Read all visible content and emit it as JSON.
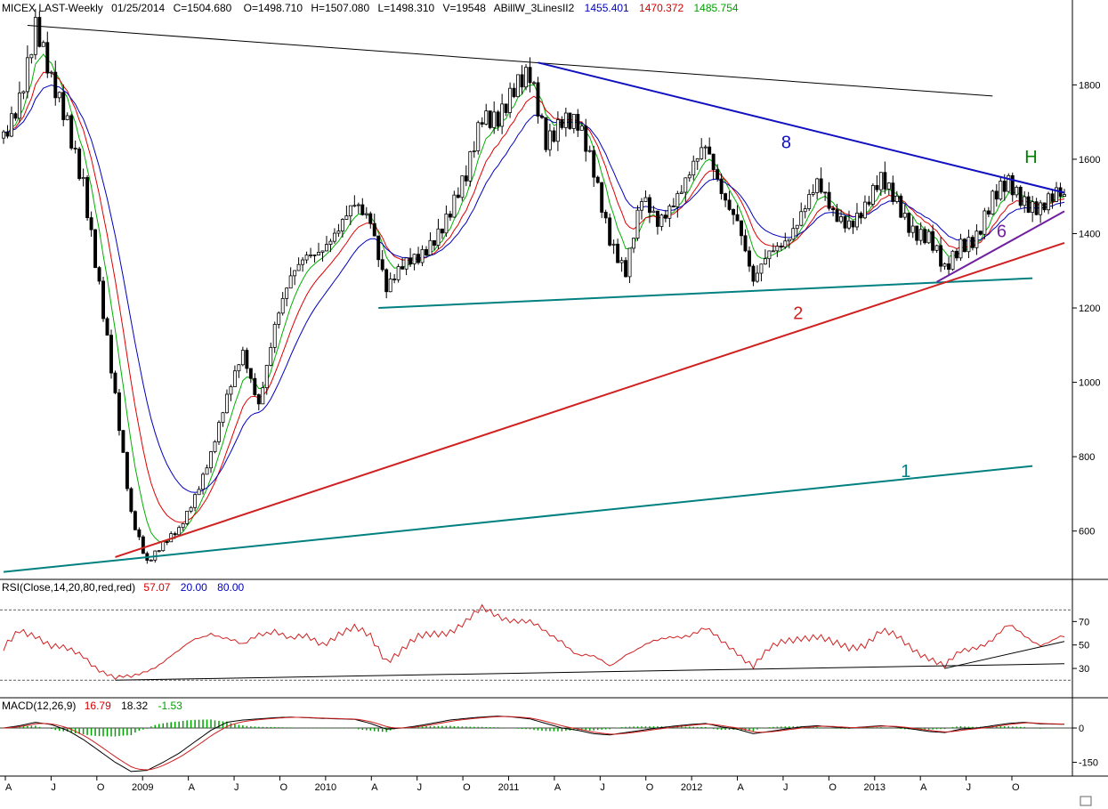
{
  "header": {
    "symbol": "MICEX LAST-Weekly",
    "date": "01/25/2014",
    "close": "C=1504.680",
    "open": "O=1498.710",
    "high": "H=1507.080",
    "low": "L=1498.310",
    "volume": "V=19548",
    "indicator": "ABillW_3LinesII2",
    "line1": "1455.401",
    "line2": "1470.372",
    "line3": "1485.754"
  },
  "rsi_header": {
    "label": "RSI(Close,14,20,80,red,red)",
    "value": "57.07",
    "low": "20.00",
    "high": "80.00"
  },
  "macd_header": {
    "label": "MACD(12,26,9)",
    "macd": "16.79",
    "signal": "18.32",
    "hist": "-1.53"
  },
  "colors": {
    "candle": "#000000",
    "fast_ma": "#00b000",
    "mid_ma": "#e00000",
    "slow_ma": "#0000c0",
    "line_teal": "#008080",
    "line_red": "#d02020",
    "line_blue": "#1010c0",
    "line_purple": "#7020a0",
    "label_H": "#008000"
  },
  "chart_data": {
    "type": "candlestick",
    "timeframe": "weekly",
    "ylim": [
      470,
      1990
    ],
    "y_ticks": [
      600,
      800,
      1000,
      1200,
      1400,
      1600,
      1800
    ],
    "x_labels": [
      "A",
      "J",
      "O",
      "2009",
      "A",
      "J",
      "O",
      "2010",
      "A",
      "J",
      "O",
      "2011",
      "A",
      "J",
      "O",
      "2012",
      "A",
      "J",
      "O",
      "2013",
      "A",
      "J",
      "O"
    ],
    "anchors": [
      [
        0,
        1650
      ],
      [
        4,
        1780
      ],
      [
        8,
        1960
      ],
      [
        12,
        1790
      ],
      [
        16,
        1700
      ],
      [
        20,
        1550
      ],
      [
        24,
        1250
      ],
      [
        28,
        950
      ],
      [
        32,
        650
      ],
      [
        36,
        520
      ],
      [
        40,
        560
      ],
      [
        44,
        600
      ],
      [
        48,
        700
      ],
      [
        52,
        810
      ],
      [
        56,
        950
      ],
      [
        60,
        1080
      ],
      [
        64,
        950
      ],
      [
        68,
        1150
      ],
      [
        72,
        1270
      ],
      [
        76,
        1350
      ],
      [
        80,
        1370
      ],
      [
        84,
        1400
      ],
      [
        88,
        1470
      ],
      [
        92,
        1450
      ],
      [
        96,
        1260
      ],
      [
        100,
        1300
      ],
      [
        104,
        1330
      ],
      [
        108,
        1400
      ],
      [
        112,
        1460
      ],
      [
        116,
        1540
      ],
      [
        120,
        1720
      ],
      [
        124,
        1730
      ],
      [
        128,
        1780
      ],
      [
        132,
        1810
      ],
      [
        136,
        1660
      ],
      [
        140,
        1720
      ],
      [
        144,
        1680
      ],
      [
        148,
        1560
      ],
      [
        152,
        1400
      ],
      [
        156,
        1300
      ],
      [
        160,
        1480
      ],
      [
        164,
        1430
      ],
      [
        168,
        1500
      ],
      [
        172,
        1560
      ],
      [
        176,
        1620
      ],
      [
        180,
        1520
      ],
      [
        184,
        1450
      ],
      [
        188,
        1260
      ],
      [
        192,
        1340
      ],
      [
        196,
        1390
      ],
      [
        200,
        1460
      ],
      [
        204,
        1520
      ],
      [
        208,
        1450
      ],
      [
        212,
        1440
      ],
      [
        216,
        1470
      ],
      [
        220,
        1530
      ],
      [
        224,
        1490
      ],
      [
        228,
        1420
      ],
      [
        232,
        1380
      ],
      [
        236,
        1290
      ],
      [
        240,
        1380
      ],
      [
        244,
        1400
      ],
      [
        248,
        1480
      ],
      [
        252,
        1530
      ],
      [
        256,
        1500
      ],
      [
        260,
        1470
      ],
      [
        264,
        1490
      ],
      [
        266,
        1505
      ]
    ],
    "trendlines": [
      {
        "label": "",
        "color": "#000000",
        "p1": [
          6,
          1960
        ],
        "p2": [
          248,
          1770
        ]
      },
      {
        "label": "8",
        "color": "#1010c0",
        "p1": [
          134,
          1860
        ],
        "p2": [
          266,
          1510
        ]
      },
      {
        "label": "",
        "color": "#008080",
        "p1": [
          94,
          1200
        ],
        "p2": [
          258,
          1280
        ]
      },
      {
        "label": "2",
        "color": "#d02020",
        "p1": [
          28,
          530
        ],
        "p2": [
          266,
          1375
        ]
      },
      {
        "label": "1",
        "color": "#008080",
        "p1": [
          0,
          490
        ],
        "p2": [
          258,
          775
        ]
      },
      {
        "label": "6",
        "color": "#7020a0",
        "p1": [
          234,
          1270
        ],
        "p2": [
          266,
          1460
        ]
      }
    ],
    "annotations": [
      {
        "text": "8",
        "x": 195,
        "y": 1630,
        "color": "#1010c0"
      },
      {
        "text": "2",
        "x": 198,
        "y": 1170,
        "color": "#d02020"
      },
      {
        "text": "1",
        "x": 225,
        "y": 745,
        "color": "#008080"
      },
      {
        "text": "6",
        "x": 249,
        "y": 1390,
        "color": "#7020a0"
      },
      {
        "text": "H",
        "x": 256,
        "y": 1590,
        "color": "#008000"
      }
    ],
    "rsi": {
      "ylim": [
        5,
        90
      ],
      "ticks": [
        30,
        50,
        70
      ],
      "levels": [
        20,
        80
      ],
      "anchors": [
        [
          0,
          45
        ],
        [
          4,
          63
        ],
        [
          8,
          60
        ],
        [
          12,
          48
        ],
        [
          16,
          45
        ],
        [
          20,
          42
        ],
        [
          24,
          30
        ],
        [
          28,
          20
        ],
        [
          32,
          22
        ],
        [
          36,
          30
        ],
        [
          40,
          36
        ],
        [
          44,
          43
        ],
        [
          48,
          55
        ],
        [
          52,
          62
        ],
        [
          56,
          55
        ],
        [
          60,
          48
        ],
        [
          64,
          60
        ],
        [
          68,
          64
        ],
        [
          72,
          54
        ],
        [
          76,
          56
        ],
        [
          80,
          52
        ],
        [
          84,
          60
        ],
        [
          88,
          63
        ],
        [
          92,
          57
        ],
        [
          96,
          38
        ],
        [
          100,
          46
        ],
        [
          104,
          55
        ],
        [
          108,
          60
        ],
        [
          112,
          63
        ],
        [
          116,
          69
        ],
        [
          120,
          80
        ],
        [
          124,
          76
        ],
        [
          128,
          72
        ],
        [
          132,
          68
        ],
        [
          136,
          60
        ],
        [
          140,
          55
        ],
        [
          144,
          42
        ],
        [
          148,
          38
        ],
        [
          152,
          32
        ],
        [
          156,
          44
        ],
        [
          160,
          48
        ],
        [
          164,
          52
        ],
        [
          168,
          58
        ],
        [
          172,
          60
        ],
        [
          176,
          63
        ],
        [
          180,
          52
        ],
        [
          184,
          45
        ],
        [
          188,
          33
        ],
        [
          192,
          45
        ],
        [
          196,
          53
        ],
        [
          200,
          58
        ],
        [
          204,
          57
        ],
        [
          208,
          50
        ],
        [
          212,
          48
        ],
        [
          216,
          52
        ],
        [
          220,
          61
        ],
        [
          224,
          56
        ],
        [
          228,
          48
        ],
        [
          232,
          40
        ],
        [
          236,
          30
        ],
        [
          240,
          44
        ],
        [
          244,
          50
        ],
        [
          248,
          55
        ],
        [
          252,
          65
        ],
        [
          256,
          58
        ],
        [
          260,
          52
        ],
        [
          264,
          55
        ],
        [
          266,
          57
        ]
      ],
      "trendlines": [
        {
          "p1": [
            28,
            20
          ],
          "p2": [
            266,
            34
          ]
        },
        {
          "p1": [
            236,
            30
          ],
          "p2": [
            266,
            53
          ]
        }
      ]
    },
    "macd": {
      "ylim": [
        -210,
        70
      ],
      "ticks": [
        -150,
        0
      ],
      "anchors": [
        [
          0,
          0
        ],
        [
          4,
          10
        ],
        [
          8,
          25
        ],
        [
          12,
          15
        ],
        [
          16,
          -10
        ],
        [
          20,
          -50
        ],
        [
          24,
          -100
        ],
        [
          28,
          -150
        ],
        [
          32,
          -190
        ],
        [
          36,
          -185
        ],
        [
          40,
          -150
        ],
        [
          44,
          -110
        ],
        [
          48,
          -60
        ],
        [
          52,
          -10
        ],
        [
          56,
          25
        ],
        [
          60,
          35
        ],
        [
          64,
          40
        ],
        [
          68,
          45
        ],
        [
          72,
          48
        ],
        [
          76,
          45
        ],
        [
          80,
          42
        ],
        [
          84,
          40
        ],
        [
          88,
          38
        ],
        [
          92,
          20
        ],
        [
          96,
          -5
        ],
        [
          100,
          0
        ],
        [
          104,
          10
        ],
        [
          108,
          22
        ],
        [
          112,
          35
        ],
        [
          116,
          42
        ],
        [
          120,
          48
        ],
        [
          124,
          52
        ],
        [
          128,
          48
        ],
        [
          132,
          40
        ],
        [
          136,
          20
        ],
        [
          140,
          0
        ],
        [
          144,
          -10
        ],
        [
          148,
          -25
        ],
        [
          152,
          -30
        ],
        [
          156,
          -20
        ],
        [
          160,
          -10
        ],
        [
          164,
          0
        ],
        [
          168,
          8
        ],
        [
          172,
          15
        ],
        [
          176,
          20
        ],
        [
          180,
          5
        ],
        [
          184,
          -5
        ],
        [
          188,
          -25
        ],
        [
          192,
          -15
        ],
        [
          196,
          -5
        ],
        [
          200,
          5
        ],
        [
          204,
          10
        ],
        [
          208,
          5
        ],
        [
          212,
          0
        ],
        [
          216,
          5
        ],
        [
          220,
          10
        ],
        [
          224,
          5
        ],
        [
          228,
          -5
        ],
        [
          232,
          -15
        ],
        [
          236,
          -20
        ],
        [
          240,
          -5
        ],
        [
          244,
          0
        ],
        [
          248,
          10
        ],
        [
          252,
          20
        ],
        [
          256,
          25
        ],
        [
          260,
          18
        ],
        [
          264,
          17
        ],
        [
          266,
          16.8
        ]
      ]
    }
  }
}
